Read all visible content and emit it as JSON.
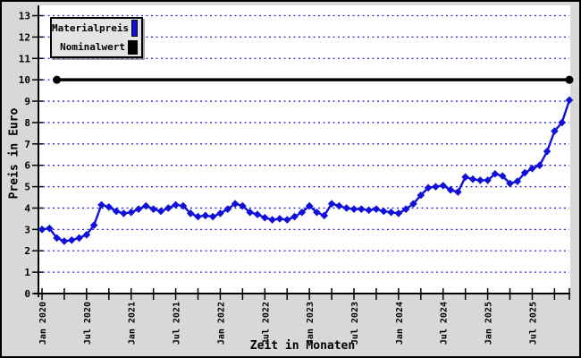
{
  "window": {
    "background_color": "#d8d8d8",
    "plot_background_color": "#ffffff",
    "frame_color": "#000000"
  },
  "axes": {
    "y_title": "Preis in Euro",
    "x_title": "Zeit in Monaten",
    "y_ticks": [
      0,
      1,
      2,
      3,
      4,
      5,
      6,
      7,
      8,
      9,
      10,
      11,
      12,
      13
    ],
    "x_tick_labels": [
      "Jan 2020",
      "Jul 2020",
      "Jan 2021",
      "Jul 2021",
      "Jan 2022",
      "Jul 2022",
      "Jan 2023",
      "Jul 2023",
      "Jan 2024",
      "Jul 2024",
      "Jan 2025",
      "Jul 2025"
    ]
  },
  "legend": {
    "items": [
      {
        "label": "Materialpreis",
        "color": "#1010d8"
      },
      {
        "label": "Nominalwert",
        "color": "#000000"
      }
    ]
  },
  "chart_data": {
    "type": "line",
    "title": "",
    "xlabel": "Zeit in Monaten",
    "ylabel": "Preis in Euro",
    "ylim": [
      0,
      13
    ],
    "x_unit": "month",
    "x_start": "Jan 2020",
    "x_end": "Dec 2025",
    "months_total": 72,
    "x_tick_labels": [
      "Jan 2020",
      "Jul 2020",
      "Jan 2021",
      "Jul 2021",
      "Jan 2022",
      "Jul 2022",
      "Jan 2023",
      "Jul 2023",
      "Jan 2024",
      "Jul 2024",
      "Jan 2025",
      "Jul 2025"
    ],
    "minor_tick_every_months": 3,
    "grid": {
      "horizontal": true,
      "style": "dotted",
      "color": "#2525e8"
    },
    "legend_position": "top-left",
    "series": [
      {
        "name": "Materialpreis",
        "color": "#1010d8",
        "marker": "diamond",
        "start_month": "Jan 2020",
        "values": [
          3.0,
          3.05,
          2.6,
          2.45,
          2.5,
          2.6,
          2.75,
          3.2,
          4.15,
          4.05,
          3.85,
          3.75,
          3.8,
          3.95,
          4.1,
          3.95,
          3.85,
          4.0,
          4.15,
          4.1,
          3.75,
          3.6,
          3.65,
          3.6,
          3.75,
          3.95,
          4.2,
          4.1,
          3.8,
          3.7,
          3.55,
          3.45,
          3.5,
          3.45,
          3.6,
          3.8,
          4.1,
          3.8,
          3.65,
          4.2,
          4.1,
          4.0,
          3.95,
          3.95,
          3.9,
          3.95,
          3.85,
          3.8,
          3.75,
          3.95,
          4.2,
          4.6,
          4.95,
          5.0,
          5.05,
          4.85,
          4.75,
          5.45,
          5.35,
          5.3,
          5.3,
          5.6,
          5.5,
          5.15,
          5.25,
          5.65,
          5.85,
          6.0,
          6.65,
          7.6,
          8.0,
          9.05
        ]
      },
      {
        "name": "Nominalwert",
        "color": "#000000",
        "marker": "circle-endpoints",
        "constant_value": 10,
        "start_month_index": 2,
        "end_month_index": 71
      }
    ]
  }
}
